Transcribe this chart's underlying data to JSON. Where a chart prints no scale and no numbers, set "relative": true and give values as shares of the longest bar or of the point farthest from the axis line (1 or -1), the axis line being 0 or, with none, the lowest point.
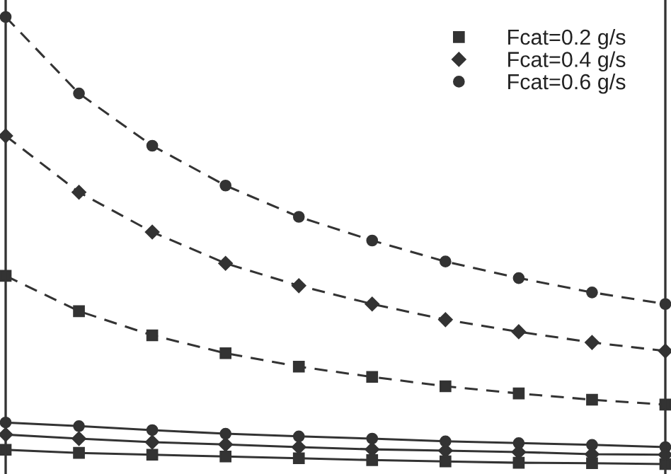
{
  "chart_data": {
    "type": "line",
    "relative": true,
    "legend": "top right",
    "grid": false,
    "categories": [
      null,
      null,
      null,
      null,
      null,
      null,
      null,
      null,
      null,
      null
    ],
    "series": [
      {
        "name": "Fcat=0.2 g/s",
        "color": "#333333",
        "marker": "square",
        "line_style": "dashed",
        "values": [
          0.421,
          0.342,
          0.288,
          0.248,
          0.218,
          0.195,
          0.174,
          0.158,
          0.144,
          0.133
        ]
      },
      {
        "name": "Fcat=0.4 g/s",
        "color": "#333333",
        "marker": "diamond",
        "line_style": "dashed",
        "values": [
          0.734,
          0.608,
          0.519,
          0.449,
          0.399,
          0.358,
          0.323,
          0.296,
          0.272,
          0.253
        ]
      },
      {
        "name": "Fcat=0.6 g/s",
        "color": "#333333",
        "marker": "circle",
        "line_style": "dashed",
        "values": [
          1.0,
          0.829,
          0.712,
          0.623,
          0.553,
          0.5,
          0.453,
          0.416,
          0.384,
          0.358
        ]
      },
      {
        "color": "#333333",
        "marker": "circle",
        "line_style": "solid",
        "values": [
          0.093,
          0.085,
          0.076,
          0.068,
          0.062,
          0.057,
          0.051,
          0.047,
          0.043,
          0.038
        ]
      },
      {
        "color": "#333333",
        "marker": "diamond",
        "line_style": "solid",
        "values": [
          0.066,
          0.057,
          0.049,
          0.044,
          0.038,
          0.033,
          0.03,
          0.027,
          0.022,
          0.021
        ]
      },
      {
        "color": "#333333",
        "marker": "square",
        "line_style": "solid",
        "values": [
          0.032,
          0.025,
          0.021,
          0.017,
          0.013,
          0.009,
          0.006,
          0.003,
          0.002,
          0.0
        ]
      }
    ]
  }
}
